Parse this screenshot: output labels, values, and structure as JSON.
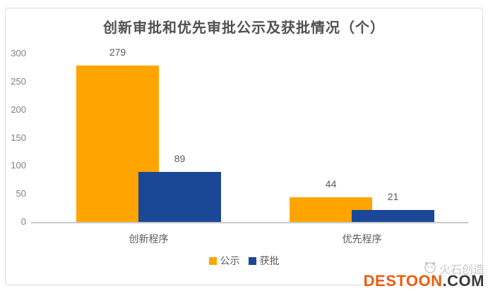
{
  "watermark": {
    "brand": "火石创造",
    "domain_primary": "DESTOON",
    "domain_suffix": ".COM"
  },
  "chart_data": {
    "type": "bar",
    "title": "创新审批和优先审批公示及获批情况（个）",
    "categories": [
      "创新程序",
      "优先程序"
    ],
    "series": [
      {
        "name": "公示",
        "color": "#FFA400",
        "values": [
          279,
          44
        ]
      },
      {
        "name": "获批",
        "color": "#1A4896",
        "values": [
          89,
          21
        ]
      }
    ],
    "data_labels": [
      [
        279,
        44
      ],
      [
        89,
        21
      ]
    ],
    "ylim": [
      0,
      300
    ],
    "yticks": [
      0,
      50,
      100,
      150,
      200,
      250,
      300
    ],
    "grid": false,
    "legend_position": "bottom",
    "bar_style": "overlapped-pairs",
    "colors": {
      "series_publicity": "#FFA400",
      "series_approved": "#1A4896",
      "axis_line": "#C9C9C9",
      "tick_text": "#808080",
      "label_text": "#595959",
      "title_text": "#515151",
      "frame_border": "#D9D9D9",
      "watermark_orange": "#EE5A0D",
      "watermark_dark": "#3A3A3A",
      "watermark_gray": "#C3C3C3"
    }
  }
}
